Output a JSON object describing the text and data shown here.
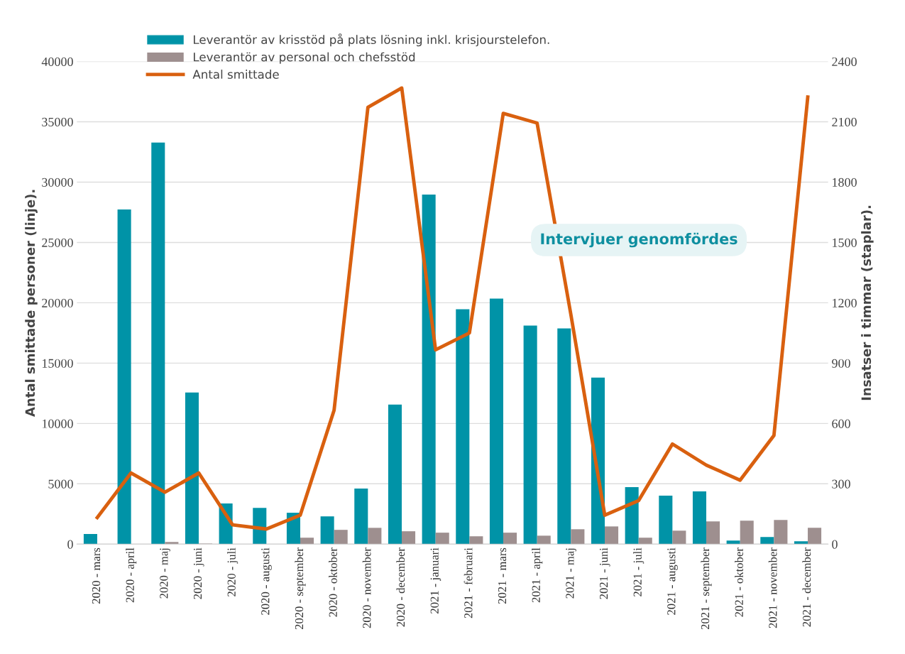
{
  "chart_data": {
    "type": "bar",
    "ylabel": "Antal smittade personer (linje).",
    "y2label": "Insatser i timmar (staplar).",
    "categories": [
      "2020 - mars",
      "2020 - april",
      "2020 - maj",
      "2020 - juni",
      "2020 - juli",
      "2020 - augusti",
      "2020 - september",
      "2020 - oktober",
      "2020 - november",
      "2020 - december",
      "2021 - januari",
      "2021 - februari",
      "2021 - mars",
      "2021 - april",
      "2021 - maj",
      "2021 - juni",
      "2021 - juli",
      "2021 - augusti",
      "2021 - september",
      "2021 - oktober",
      "2021 - november",
      "2021 - december"
    ],
    "series": [
      {
        "name": "Leverantör av krisstöd på plats lösning inkl. krisjourstelefon.",
        "axis": "y2",
        "color": "#0093a7",
        "values": [
          50,
          1664,
          1997,
          754,
          202,
          180,
          156,
          138,
          276,
          694,
          1738,
          1168,
          1221,
          1087,
          1073,
          828,
          283,
          241,
          262,
          18,
          35,
          14
        ]
      },
      {
        "name": "Leverantör av personal och chefsstöd",
        "axis": "y2",
        "color": "#9e8f8f",
        "values": [
          0,
          0,
          11,
          3,
          0,
          null,
          32,
          71,
          81,
          64,
          57,
          39,
          57,
          42,
          74,
          88,
          32,
          67,
          113,
          117,
          120,
          81
        ]
      },
      {
        "name": "Antal smittade",
        "type": "line",
        "axis": "y",
        "color": "#d9600f",
        "values": [
          2200,
          5900,
          4300,
          5900,
          1600,
          1250,
          2400,
          11100,
          36200,
          37800,
          16100,
          17500,
          35700,
          34900,
          19000,
          2400,
          3600,
          8300,
          6550,
          5300,
          9000,
          37050
        ]
      }
    ],
    "ylim": [
      0,
      40000
    ],
    "yticks": [
      0,
      5000,
      10000,
      15000,
      20000,
      25000,
      30000,
      35000,
      40000
    ],
    "y2lim": [
      0,
      2400
    ],
    "y2ticks": [
      0,
      300,
      600,
      900,
      1200,
      1500,
      1800,
      2100,
      2400
    ],
    "grid": "y",
    "legend": "top left",
    "marker": "none",
    "line_style": "solid",
    "annotations": [
      "Intervjuer genomfördes"
    ]
  }
}
